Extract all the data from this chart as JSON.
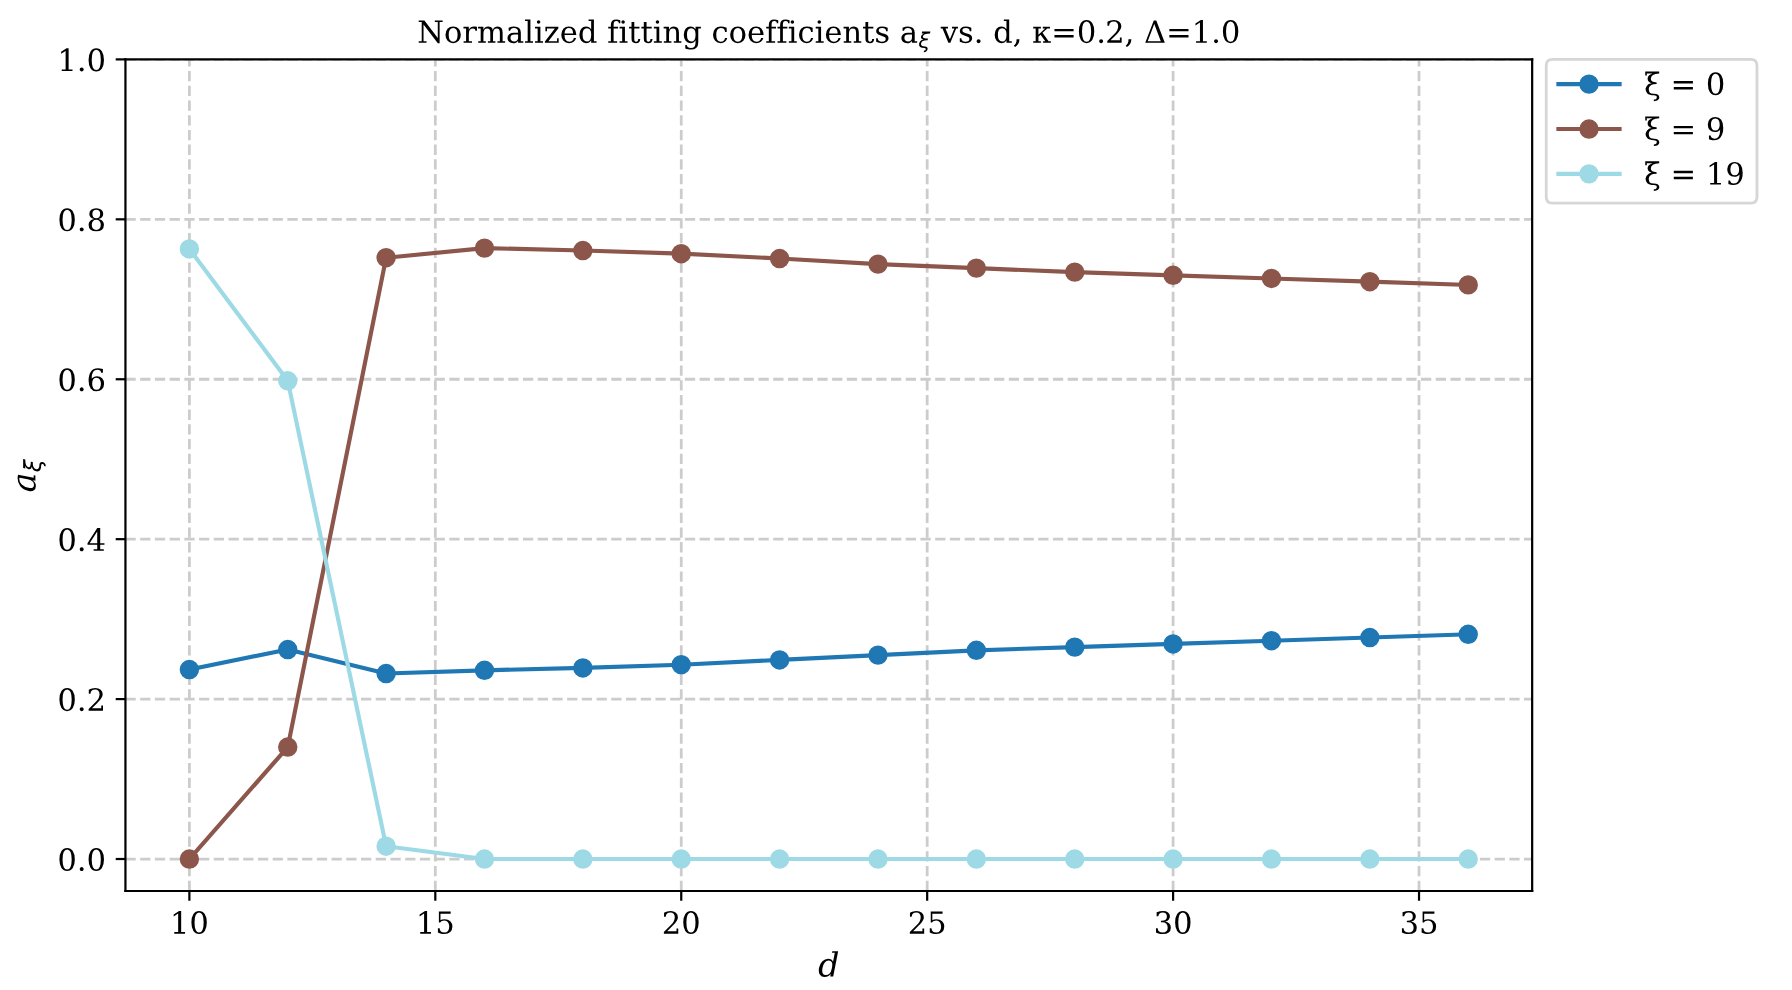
{
  "chart_data": {
    "type": "line",
    "title": "Normalized fitting coefficients a$_{ξ}$ vs. d, κ=0.2, Δ=1.0",
    "xlabel": "d",
    "ylabel": "a$_{ξ}$",
    "x": [
      10,
      12,
      14,
      16,
      18,
      20,
      22,
      24,
      26,
      28,
      30,
      32,
      34,
      36
    ],
    "series": [
      {
        "name": "ξ = 0",
        "color": "#1f77b4",
        "values": [
          0.237,
          0.262,
          0.232,
          0.236,
          0.239,
          0.243,
          0.249,
          0.255,
          0.261,
          0.265,
          0.269,
          0.273,
          0.277,
          0.281
        ]
      },
      {
        "name": "ξ = 9",
        "color": "#8c564b",
        "values": [
          0.0,
          0.14,
          0.752,
          0.764,
          0.761,
          0.757,
          0.751,
          0.744,
          0.739,
          0.734,
          0.73,
          0.726,
          0.722,
          0.718
        ]
      },
      {
        "name": "ξ = 19",
        "color": "#9edae5",
        "values": [
          0.763,
          0.598,
          0.016,
          0.0,
          0.0,
          0.0,
          0.0,
          0.0,
          0.0,
          0.0,
          0.0,
          0.0,
          0.0,
          0.0
        ]
      }
    ],
    "xlim": [
      8.7,
      37.3
    ],
    "ylim": [
      -0.04,
      1.0
    ],
    "xticks": [
      10,
      15,
      20,
      25,
      30,
      35
    ],
    "yticks": [
      {
        "value": 0,
        "label": "0.0"
      },
      0.2,
      0.4,
      0.6,
      0.8,
      {
        "value": 1,
        "label": "1.0"
      }
    ],
    "grid": true,
    "legend": "top right",
    "marker": "circle",
    "line_style": "solid"
  }
}
